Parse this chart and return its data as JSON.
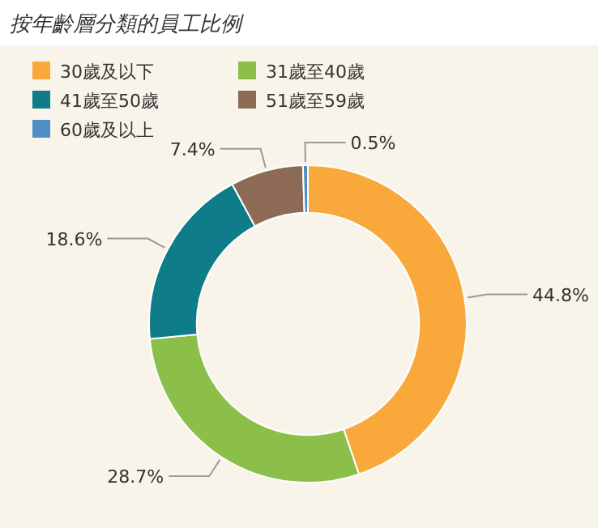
{
  "chart_data": {
    "type": "donut",
    "title": "按年齡層分類的員工比例",
    "categories": [
      "30歲及以下",
      "31歲至40歲",
      "41歲至50歲",
      "51歲至59歲",
      "60歲及以上"
    ],
    "values": [
      44.8,
      28.7,
      18.6,
      7.4,
      0.5
    ],
    "colors": [
      "#f9a93c",
      "#8cbf4a",
      "#0f7c89",
      "#8c6a55",
      "#4f8fc8"
    ],
    "value_labels": [
      "44.8%",
      "28.7%",
      "18.6%",
      "7.4%",
      "0.5%"
    ],
    "legend": "top"
  }
}
